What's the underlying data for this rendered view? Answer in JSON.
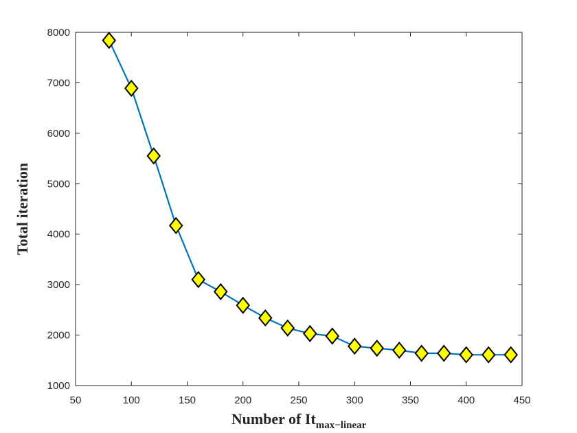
{
  "chart_data": {
    "type": "line",
    "xlabel": "Number of It",
    "xlabel_subscript": "max−linear",
    "ylabel": "Total iteration",
    "xlim": [
      50,
      450
    ],
    "ylim": [
      1000,
      8000
    ],
    "xticks": [
      50,
      100,
      150,
      200,
      250,
      300,
      350,
      400,
      450
    ],
    "yticks": [
      1000,
      2000,
      3000,
      4000,
      5000,
      6000,
      7000,
      8000
    ],
    "grid": false,
    "marker": "diamond",
    "colors": {
      "line": "#0072BD",
      "marker_fill": "#FFFF00",
      "marker_edge": "#000000",
      "axis": "#262626"
    },
    "series": [
      {
        "x": [
          80,
          100,
          120,
          140,
          160,
          180,
          200,
          220,
          240,
          260,
          280,
          300,
          320,
          340,
          360,
          380,
          400,
          420,
          440
        ],
        "y": [
          7840,
          6890,
          5550,
          4170,
          3100,
          2860,
          2590,
          2340,
          2140,
          2030,
          1980,
          1780,
          1740,
          1700,
          1640,
          1640,
          1610,
          1610,
          1610
        ]
      }
    ]
  }
}
